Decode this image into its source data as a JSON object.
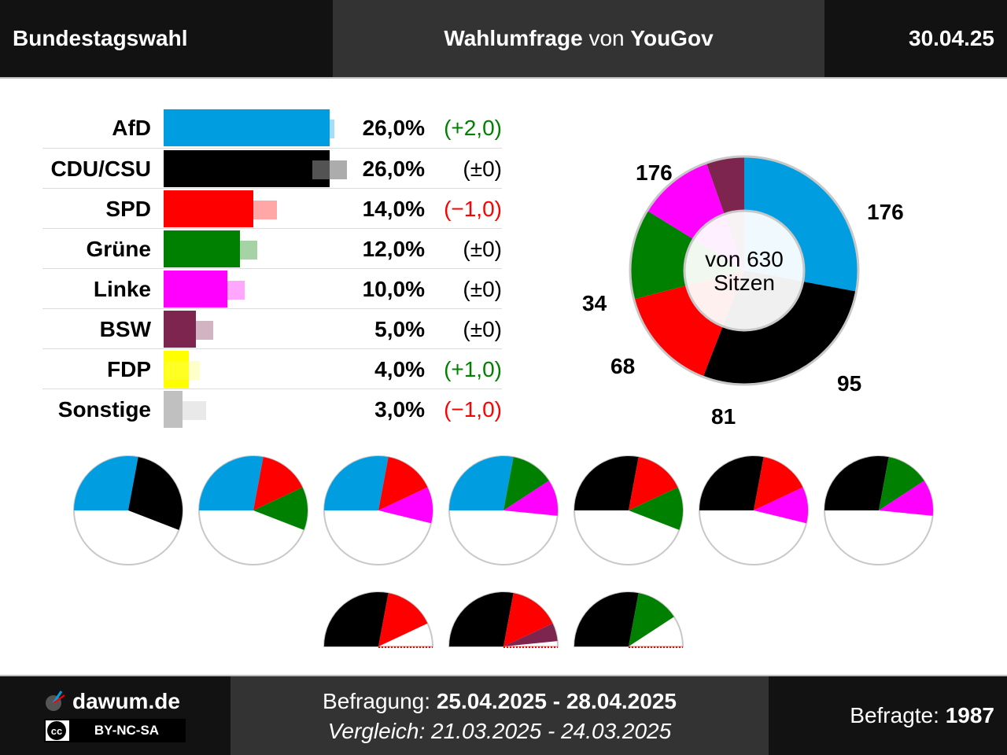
{
  "header": {
    "left": "Bundestagswahl",
    "mid_bold1": "Wahlumfrage",
    "mid_normal": "von",
    "mid_bold2": "YouGov",
    "date": "30.04.25"
  },
  "colors": {
    "AfD": "#009ee0",
    "CDU/CSU": "#000000",
    "SPD": "#ff0000",
    "Grüne": "#008000",
    "Linke": "#ff00ff",
    "BSW": "#7d254f",
    "FDP": "#ffff00",
    "Sonstige": "#c0c0c0",
    "positive": "#008000",
    "negative": "#ff0000",
    "neutral": "#000000"
  },
  "chart_data": [
    {
      "type": "bar",
      "orientation": "horizontal",
      "categories": [
        "AfD",
        "CDU/CSU",
        "SPD",
        "Grüne",
        "Linke",
        "BSW",
        "FDP",
        "Sonstige"
      ],
      "values": [
        26.0,
        26.0,
        14.0,
        12.0,
        10.0,
        5.0,
        4.0,
        3.0
      ],
      "previous_values": [
        24.0,
        26.0,
        15.0,
        12.0,
        10.0,
        5.0,
        3.0,
        4.0
      ],
      "value_labels": [
        "26,0%",
        "26,0%",
        "14,0%",
        "12,0%",
        "10,0%",
        "5,0%",
        "4,0%",
        "3,0%"
      ],
      "change_labels": [
        "(+2,0)",
        "(±0)",
        "(−1,0)",
        "(±0)",
        "(±0)",
        "(±0)",
        "(+1,0)",
        "(−1,0)"
      ],
      "change_signs": [
        "positive",
        "neutral",
        "negative",
        "neutral",
        "neutral",
        "neutral",
        "positive",
        "negative"
      ],
      "xlim": [
        0,
        30
      ]
    },
    {
      "type": "pie",
      "style": "donut",
      "categories": [
        "AfD",
        "CDU/CSU",
        "SPD",
        "Grüne",
        "Linke",
        "BSW"
      ],
      "values": [
        176,
        176,
        95,
        81,
        68,
        34
      ],
      "total": 630,
      "center_line1": "von 630",
      "center_line2": "Sitzen"
    },
    {
      "type": "pie",
      "style": "coalition-semicircles",
      "majority": 316,
      "coalitions": [
        {
          "parties": [
            "AfD",
            "CDU/CSU"
          ],
          "seats": [
            176,
            176
          ],
          "majority": true
        },
        {
          "parties": [
            "AfD",
            "SPD",
            "Grüne"
          ],
          "seats": [
            176,
            95,
            81
          ],
          "majority": true
        },
        {
          "parties": [
            "AfD",
            "SPD",
            "Linke"
          ],
          "seats": [
            176,
            95,
            68
          ],
          "majority": true
        },
        {
          "parties": [
            "AfD",
            "Grüne",
            "Linke"
          ],
          "seats": [
            176,
            81,
            68
          ],
          "majority": true
        },
        {
          "parties": [
            "CDU/CSU",
            "SPD",
            "Grüne"
          ],
          "seats": [
            176,
            95,
            81
          ],
          "majority": true
        },
        {
          "parties": [
            "CDU/CSU",
            "SPD",
            "Linke"
          ],
          "seats": [
            176,
            95,
            68
          ],
          "majority": true
        },
        {
          "parties": [
            "CDU/CSU",
            "Grüne",
            "Linke"
          ],
          "seats": [
            176,
            81,
            68
          ],
          "majority": true
        },
        {
          "parties": [
            "CDU/CSU",
            "SPD"
          ],
          "seats": [
            176,
            95
          ],
          "majority": false
        },
        {
          "parties": [
            "CDU/CSU",
            "SPD",
            "BSW"
          ],
          "seats": [
            176,
            95,
            34
          ],
          "majority": false
        },
        {
          "parties": [
            "CDU/CSU",
            "Grüne"
          ],
          "seats": [
            176,
            81
          ],
          "majority": false
        }
      ]
    }
  ],
  "footer": {
    "brand": "dawum.de",
    "license": "BY-NC-SA",
    "cc": "cc",
    "survey_label": "Befragung:",
    "survey_period": "25.04.2025 - 28.04.2025",
    "compare_text": "Vergleich: 21.03.2025 - 24.03.2025",
    "respondents_label": "Befragte:",
    "respondents": "1987"
  }
}
